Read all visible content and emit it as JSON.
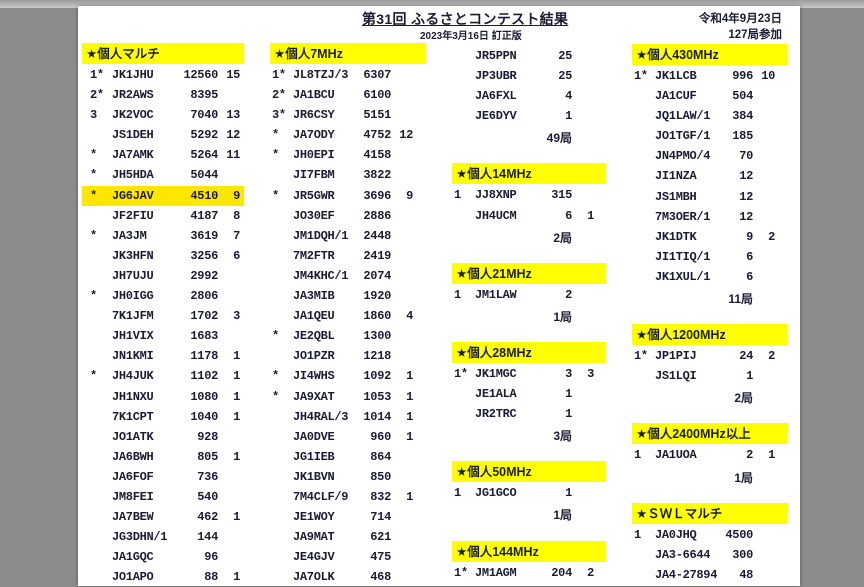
{
  "header": {
    "title": "第31回 ふるさとコンテスト結果",
    "subtitle": "2023年3月16日 訂正版",
    "date": "令和4年9月23日",
    "participants": "127局参加"
  },
  "colors": {
    "section_header": "#ffff00",
    "highlight": "#ffe600"
  },
  "columns": [
    {
      "items": [
        {
          "type": "header",
          "title": "★個人マルチ"
        },
        {
          "type": "row",
          "rank": "1*",
          "call": "JK1JHU",
          "score": "12560",
          "multi": "15"
        },
        {
          "type": "row",
          "rank": "2*",
          "call": "JR2AWS",
          "score": "8395",
          "multi": ""
        },
        {
          "type": "row",
          "rank": "3",
          "call": "JK2VOC",
          "score": "7040",
          "multi": "13"
        },
        {
          "type": "row",
          "rank": "",
          "call": "JS1DEH",
          "score": "5292",
          "multi": "12"
        },
        {
          "type": "row",
          "rank": "*",
          "call": "JA7AMK",
          "score": "5264",
          "multi": "11"
        },
        {
          "type": "row",
          "rank": "*",
          "call": "JH5HDA",
          "score": "5044",
          "multi": ""
        },
        {
          "type": "row",
          "rank": "*",
          "call": "JG6JAV",
          "score": "4510",
          "multi": "9",
          "highlight": true
        },
        {
          "type": "row",
          "rank": "",
          "call": "JF2FIU",
          "score": "4187",
          "multi": "8"
        },
        {
          "type": "row",
          "rank": "*",
          "call": "JA3JM",
          "score": "3619",
          "multi": "7"
        },
        {
          "type": "row",
          "rank": "",
          "call": "JK3HFN",
          "score": "3256",
          "multi": "6"
        },
        {
          "type": "row",
          "rank": "",
          "call": "JH7UJU",
          "score": "2992",
          "multi": ""
        },
        {
          "type": "row",
          "rank": "*",
          "call": "JH0IGG",
          "score": "2806",
          "multi": ""
        },
        {
          "type": "row",
          "rank": "",
          "call": "7K1JFM",
          "score": "1702",
          "multi": "3"
        },
        {
          "type": "row",
          "rank": "",
          "call": "JH1VIX",
          "score": "1683",
          "multi": ""
        },
        {
          "type": "row",
          "rank": "",
          "call": "JN1KMI",
          "score": "1178",
          "multi": "1"
        },
        {
          "type": "row",
          "rank": "*",
          "call": "JH4JUK",
          "score": "1102",
          "multi": "1"
        },
        {
          "type": "row",
          "rank": "",
          "call": "JH1NXU",
          "score": "1080",
          "multi": "1"
        },
        {
          "type": "row",
          "rank": "",
          "call": "7K1CPT",
          "score": "1040",
          "multi": "1"
        },
        {
          "type": "row",
          "rank": "",
          "call": "JO1ATK",
          "score": "928",
          "multi": ""
        },
        {
          "type": "row",
          "rank": "",
          "call": "JA6BWH",
          "score": "805",
          "multi": "1"
        },
        {
          "type": "row",
          "rank": "",
          "call": "JA6FOF",
          "score": "736",
          "multi": ""
        },
        {
          "type": "row",
          "rank": "",
          "call": "JM8FEI",
          "score": "540",
          "multi": ""
        },
        {
          "type": "row",
          "rank": "",
          "call": "JA7BEW",
          "score": "462",
          "multi": "1"
        },
        {
          "type": "row",
          "rank": "",
          "call": "JG3DHN/1",
          "score": "144",
          "multi": ""
        },
        {
          "type": "row",
          "rank": "",
          "call": "JA1GQC",
          "score": "96",
          "multi": ""
        },
        {
          "type": "row",
          "rank": "",
          "call": "JO1APO",
          "score": "88",
          "multi": "1"
        }
      ]
    },
    {
      "items": [
        {
          "type": "header",
          "title": "★個人7MHz"
        },
        {
          "type": "row",
          "rank": "1*",
          "call": "JL8TZJ/3",
          "score": "6307",
          "multi": ""
        },
        {
          "type": "row",
          "rank": "2*",
          "call": "JA1BCU",
          "score": "6100",
          "multi": ""
        },
        {
          "type": "row",
          "rank": "3*",
          "call": "JR6CSY",
          "score": "5151",
          "multi": ""
        },
        {
          "type": "row",
          "rank": "*",
          "call": "JA7ODY",
          "score": "4752",
          "multi": "12"
        },
        {
          "type": "row",
          "rank": "*",
          "call": "JH0EPI",
          "score": "4158",
          "multi": ""
        },
        {
          "type": "row",
          "rank": "",
          "call": "JI7FBM",
          "score": "3822",
          "multi": ""
        },
        {
          "type": "row",
          "rank": "*",
          "call": "JR5GWR",
          "score": "3696",
          "multi": "9"
        },
        {
          "type": "row",
          "rank": "",
          "call": "JO30EF",
          "score": "2886",
          "multi": ""
        },
        {
          "type": "row",
          "rank": "",
          "call": "JM1DQH/1",
          "score": "2448",
          "multi": ""
        },
        {
          "type": "row",
          "rank": "",
          "call": "7M2FTR",
          "score": "2419",
          "multi": ""
        },
        {
          "type": "row",
          "rank": "",
          "call": "JM4KHC/1",
          "score": "2074",
          "multi": ""
        },
        {
          "type": "row",
          "rank": "",
          "call": "JA3MIB",
          "score": "1920",
          "multi": ""
        },
        {
          "type": "row",
          "rank": "",
          "call": "JA1QEU",
          "score": "1860",
          "multi": "4"
        },
        {
          "type": "row",
          "rank": "*",
          "call": "JE2QBL",
          "score": "1300",
          "multi": ""
        },
        {
          "type": "row",
          "rank": "",
          "call": "JO1PZR",
          "score": "1218",
          "multi": ""
        },
        {
          "type": "row",
          "rank": "*",
          "call": "JI4WHS",
          "score": "1092",
          "multi": "1"
        },
        {
          "type": "row",
          "rank": "*",
          "call": "JA9XAT",
          "score": "1053",
          "multi": "1"
        },
        {
          "type": "row",
          "rank": "",
          "call": "JH4RAL/3",
          "score": "1014",
          "multi": "1"
        },
        {
          "type": "row",
          "rank": "",
          "call": "JA0DVE",
          "score": "960",
          "multi": "1"
        },
        {
          "type": "row",
          "rank": "",
          "call": "JG1IEB",
          "score": "864",
          "multi": ""
        },
        {
          "type": "row",
          "rank": "",
          "call": "JK1BVN",
          "score": "850",
          "multi": ""
        },
        {
          "type": "row",
          "rank": "",
          "call": "7M4CLF/9",
          "score": "832",
          "multi": "1"
        },
        {
          "type": "row",
          "rank": "",
          "call": "JE1WOY",
          "score": "714",
          "multi": ""
        },
        {
          "type": "row",
          "rank": "",
          "call": "JA9MAT",
          "score": "621",
          "multi": ""
        },
        {
          "type": "row",
          "rank": "",
          "call": "JE4GJV",
          "score": "475",
          "multi": ""
        },
        {
          "type": "row",
          "rank": "",
          "call": "JA7OLK",
          "score": "468",
          "multi": ""
        }
      ]
    },
    {
      "items": [
        {
          "type": "row",
          "rank": "",
          "call": "JR5PPN",
          "score": "25",
          "multi": ""
        },
        {
          "type": "row",
          "rank": "",
          "call": "JP3UBR",
          "score": "25",
          "multi": ""
        },
        {
          "type": "row",
          "rank": "",
          "call": "JA6FXL",
          "score": "4",
          "multi": ""
        },
        {
          "type": "row",
          "rank": "",
          "call": "JE6DYV",
          "score": "1",
          "multi": ""
        },
        {
          "type": "total",
          "text": "49局"
        },
        {
          "type": "header",
          "title": "★個人14MHz"
        },
        {
          "type": "row",
          "rank": "1",
          "call": "JJ8XNP",
          "score": "315",
          "multi": ""
        },
        {
          "type": "row",
          "rank": "",
          "call": "JH4UCM",
          "score": "6",
          "multi": "1"
        },
        {
          "type": "total",
          "text": "2局"
        },
        {
          "type": "header",
          "title": "★個人21MHz"
        },
        {
          "type": "row",
          "rank": "1",
          "call": "JM1LAW",
          "score": "2",
          "multi": ""
        },
        {
          "type": "total",
          "text": "1局"
        },
        {
          "type": "header",
          "title": "★個人28MHz"
        },
        {
          "type": "row",
          "rank": "1*",
          "call": "JK1MGC",
          "score": "3",
          "multi": "3"
        },
        {
          "type": "row",
          "rank": "",
          "call": "JE1ALA",
          "score": "1",
          "multi": ""
        },
        {
          "type": "row",
          "rank": "",
          "call": "JR2TRC",
          "score": "1",
          "multi": ""
        },
        {
          "type": "total",
          "text": "3局"
        },
        {
          "type": "header",
          "title": "★個人50MHz"
        },
        {
          "type": "row",
          "rank": "1",
          "call": "JG1GCO",
          "score": "1",
          "multi": ""
        },
        {
          "type": "total",
          "text": "1局"
        },
        {
          "type": "header",
          "title": "★個人144MHz"
        },
        {
          "type": "row",
          "rank": "1*",
          "call": "JM1AGM",
          "score": "204",
          "multi": "2"
        }
      ]
    },
    {
      "items": [
        {
          "type": "header",
          "title": "★個人430MHz"
        },
        {
          "type": "row",
          "rank": "1*",
          "call": "JK1LCB",
          "score": "996",
          "multi": "10"
        },
        {
          "type": "row",
          "rank": "",
          "call": "JA1CUF",
          "score": "504",
          "multi": ""
        },
        {
          "type": "row",
          "rank": "",
          "call": "JQ1LAW/1",
          "score": "384",
          "multi": ""
        },
        {
          "type": "row",
          "rank": "",
          "call": "JO1TGF/1",
          "score": "185",
          "multi": ""
        },
        {
          "type": "row",
          "rank": "",
          "call": "JN4PMO/4",
          "score": "70",
          "multi": ""
        },
        {
          "type": "row",
          "rank": "",
          "call": "JI1NZA",
          "score": "12",
          "multi": ""
        },
        {
          "type": "row",
          "rank": "",
          "call": "JS1MBH",
          "score": "12",
          "multi": ""
        },
        {
          "type": "row",
          "rank": "",
          "call": "7M3OER/1",
          "score": "12",
          "multi": ""
        },
        {
          "type": "row",
          "rank": "",
          "call": "JK1DTK",
          "score": "9",
          "multi": "2"
        },
        {
          "type": "row",
          "rank": "",
          "call": "JI1TIQ/1",
          "score": "6",
          "multi": ""
        },
        {
          "type": "row",
          "rank": "",
          "call": "JK1XUL/1",
          "score": "6",
          "multi": ""
        },
        {
          "type": "total",
          "text": "11局"
        },
        {
          "type": "header",
          "title": "★個人1200MHz"
        },
        {
          "type": "row",
          "rank": "1*",
          "call": "JP1PIJ",
          "score": "24",
          "multi": "2"
        },
        {
          "type": "row",
          "rank": "",
          "call": "JS1LQI",
          "score": "1",
          "multi": ""
        },
        {
          "type": "total",
          "text": "2局"
        },
        {
          "type": "header",
          "title": "★個人2400MHz以上"
        },
        {
          "type": "row",
          "rank": "1",
          "call": "JA1UOA",
          "score": "2",
          "multi": "1"
        },
        {
          "type": "total",
          "text": "1局"
        },
        {
          "type": "header",
          "title": "★ＳＷＬマルチ"
        },
        {
          "type": "row",
          "rank": "1",
          "call": "JA0JHQ",
          "score": "4500",
          "multi": ""
        },
        {
          "type": "row",
          "rank": "",
          "call": "JA3-6644",
          "score": "300",
          "multi": ""
        },
        {
          "type": "row",
          "rank": "",
          "call": "JA4-27894",
          "score": "48",
          "multi": ""
        }
      ]
    }
  ]
}
